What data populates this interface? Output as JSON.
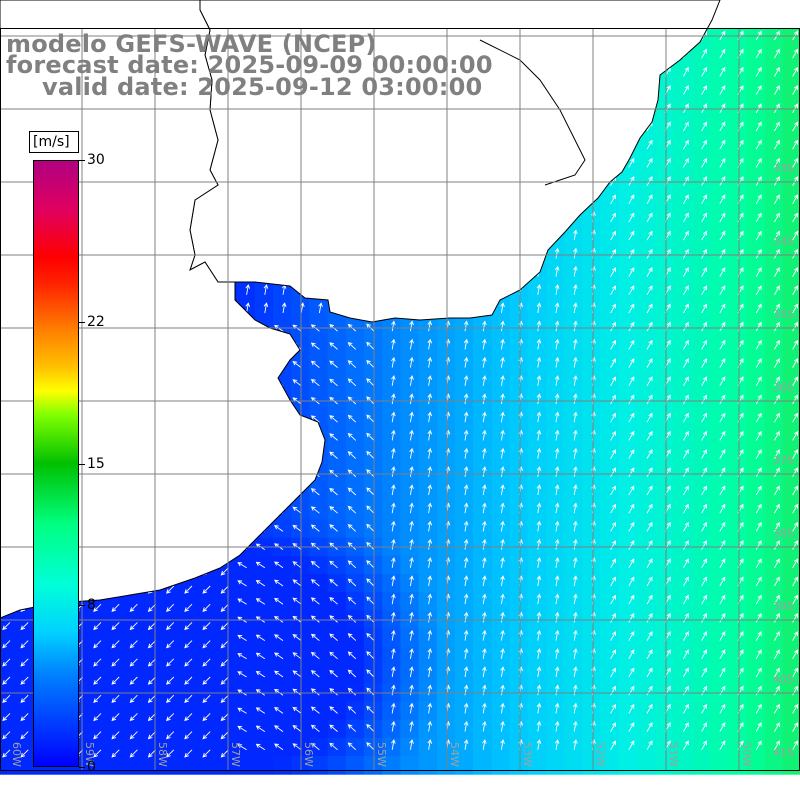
{
  "title": {
    "line1": "modelo GEFS-WAVE (NCEP)",
    "line2": "forecast date: 2025-09-09 00:00:00",
    "line3": "valid date: 2025-09-12 03:00:00"
  },
  "colorbar": {
    "unit": "[m/s]",
    "ticks": [
      {
        "label": "30",
        "value": 30
      },
      {
        "label": "22",
        "value": 22
      },
      {
        "label": "15",
        "value": 15
      },
      {
        "label": "8",
        "value": 8
      },
      {
        "label": "0",
        "value": 0
      }
    ],
    "range": [
      0,
      30
    ],
    "colors": [
      "#0000ff",
      "#00d0ff",
      "#00ff80",
      "#00c000",
      "#ffff00",
      "#ff8000",
      "#ff0000",
      "#b00080"
    ]
  },
  "map": {
    "lat_labels": [
      "33S",
      "34S",
      "35S",
      "36S",
      "37S",
      "38S",
      "39S",
      "40S",
      "41S"
    ],
    "lon_labels": [
      "60W",
      "59W",
      "58W",
      "57W",
      "56W",
      "55W",
      "54W",
      "53W",
      "52W",
      "51W",
      "50W"
    ],
    "colors": {
      "land": "#ffffff",
      "grid": "#808080",
      "coast": "#000000",
      "arrow": "#ffffff",
      "label_grey": "#a0a0a0"
    },
    "arrow_field": "wind direction vectors (white arrows)"
  }
}
